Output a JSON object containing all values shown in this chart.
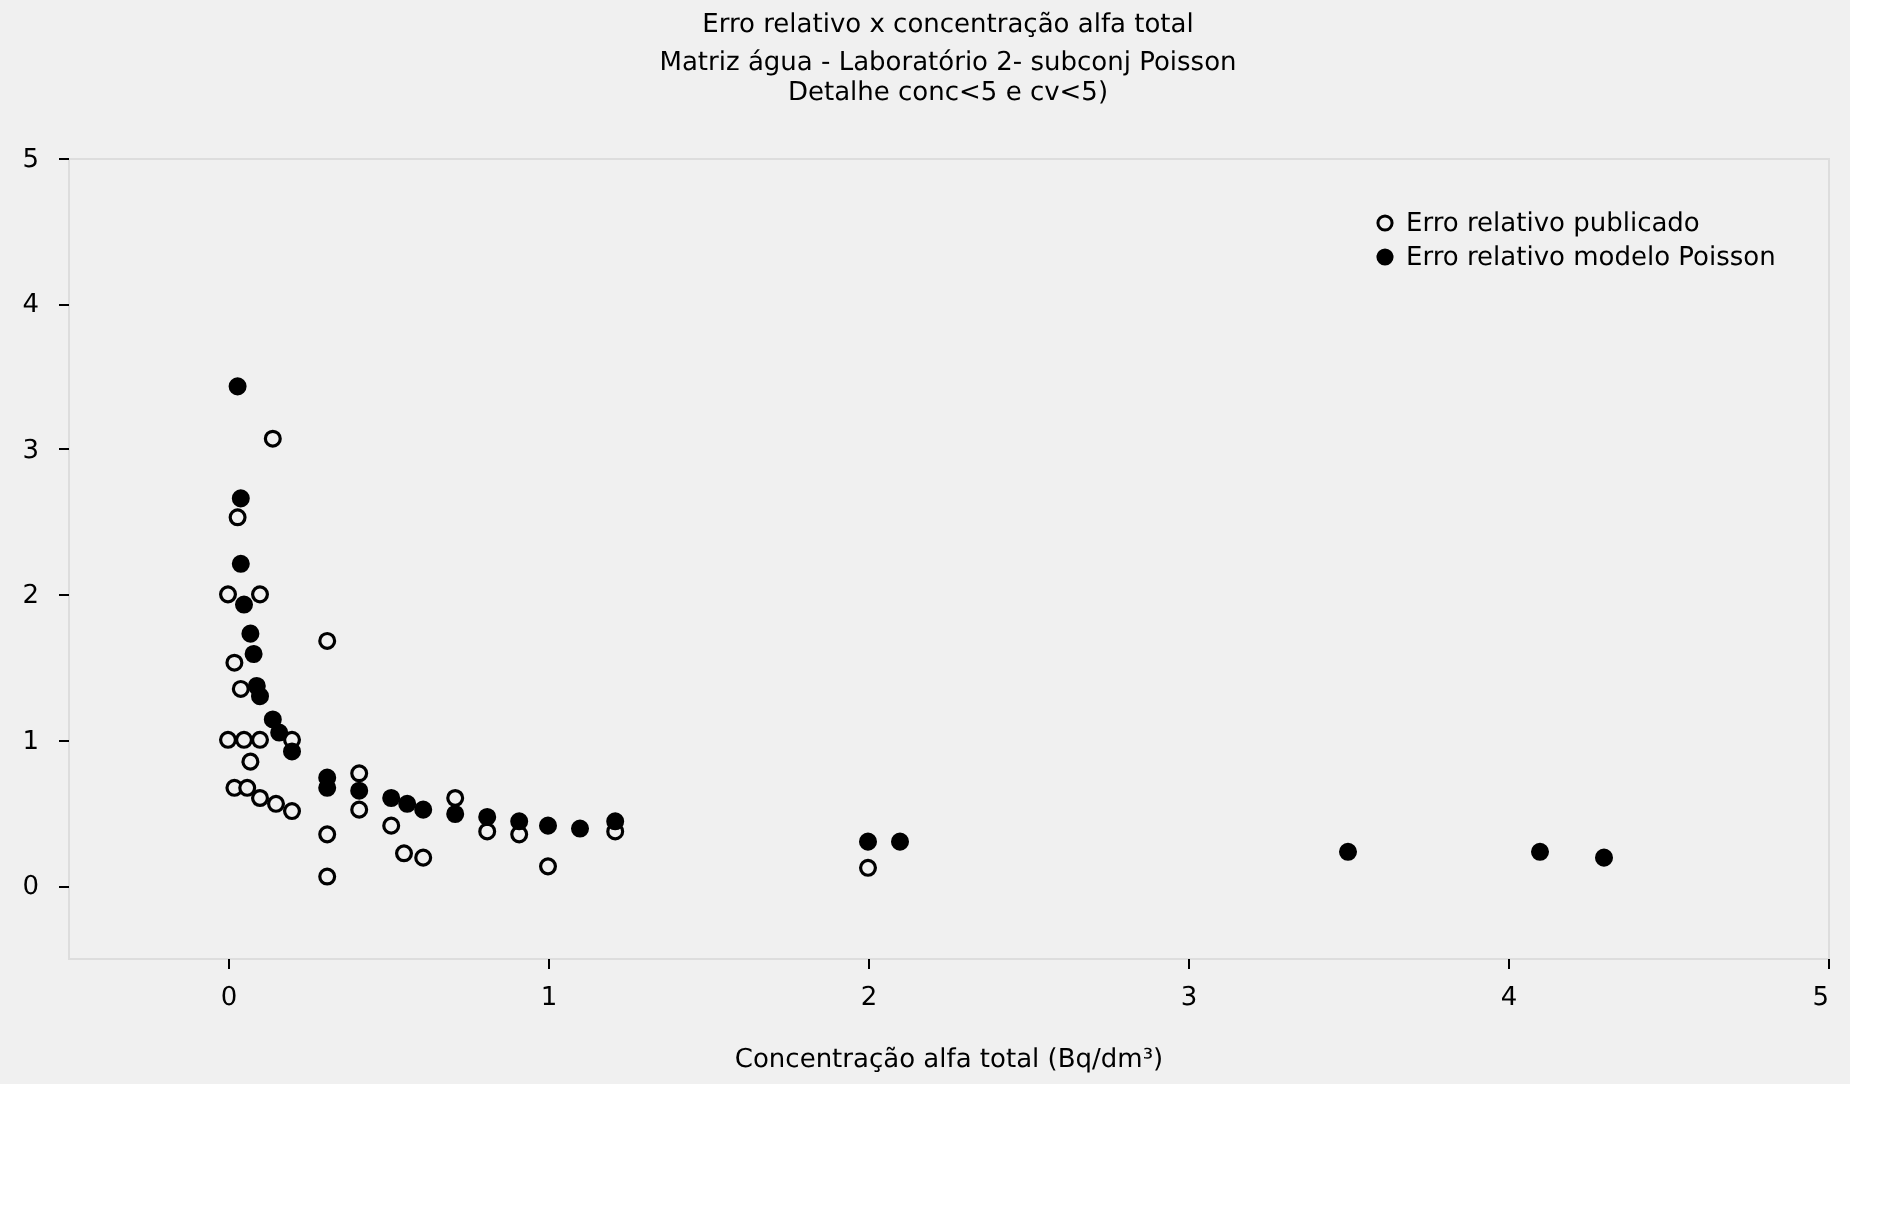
{
  "chart_data": {
    "type": "scatter",
    "title": "Erro relativo x concentração alfa total",
    "subtitle": "Matriz água - Laboratório 2- subconj Poisson\nDetalhe conc<5 e cv<5)",
    "xlabel": "Concentração alfa total (Bq/dm³)",
    "xlim": [
      -0.5,
      5
    ],
    "ylim": [
      -0.5,
      5
    ],
    "xticks": [
      0,
      1,
      2,
      3,
      4,
      5
    ],
    "yticks": [
      0,
      1,
      2,
      3,
      4,
      5
    ],
    "grid": false,
    "legend": "top right",
    "marker": "circle",
    "series": [
      {
        "name": "Erro relativo publicado",
        "color": "#000000",
        "x": [
          0.14,
          0.03,
          0.0,
          0.1,
          0.31,
          0.02,
          0.04,
          0.0,
          0.05,
          0.1,
          0.2,
          0.07,
          0.02,
          0.06,
          0.1,
          0.15,
          0.2,
          0.31,
          0.31,
          0.41,
          0.41,
          0.51,
          0.55,
          0.61,
          0.71,
          0.81,
          0.91,
          1.0,
          1.21,
          2.0
        ],
        "values": [
          3.07,
          2.53,
          2.0,
          2.0,
          1.68,
          1.53,
          1.35,
          1.0,
          1.0,
          1.0,
          1.0,
          0.85,
          0.67,
          0.67,
          0.6,
          0.56,
          0.51,
          0.35,
          0.06,
          0.77,
          0.52,
          0.41,
          0.22,
          0.19,
          0.6,
          0.37,
          0.35,
          0.13,
          0.37,
          0.12
        ]
      },
      {
        "name": "Erro relativo modelo Poisson",
        "color": "#000000",
        "x": [
          0.03,
          0.04,
          0.04,
          0.05,
          0.07,
          0.08,
          0.09,
          0.1,
          0.14,
          0.16,
          0.2,
          0.31,
          0.31,
          0.41,
          0.51,
          0.56,
          0.61,
          0.71,
          0.81,
          0.91,
          1.0,
          1.1,
          1.21,
          2.0,
          2.1,
          3.5,
          4.1,
          4.3
        ],
        "values": [
          3.43,
          2.66,
          2.21,
          1.93,
          1.73,
          1.59,
          1.37,
          1.3,
          1.14,
          1.05,
          0.92,
          0.74,
          0.67,
          0.65,
          0.6,
          0.56,
          0.52,
          0.49,
          0.47,
          0.44,
          0.41,
          0.39,
          0.44,
          0.3,
          0.3,
          0.23,
          0.23,
          0.19
        ]
      }
    ]
  }
}
